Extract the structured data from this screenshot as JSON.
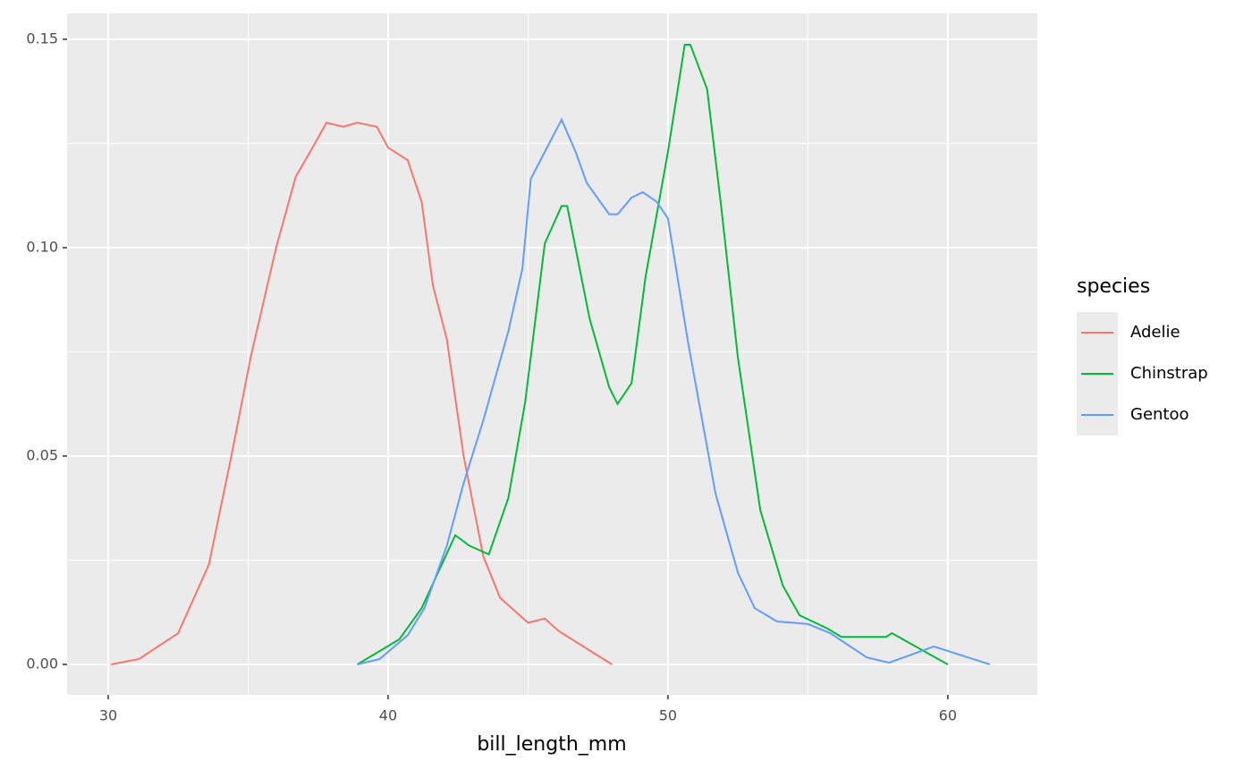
{
  "chart_data": {
    "type": "line",
    "x_label": "bill_length_mm",
    "legend_title": "species",
    "legend_position": "right",
    "grid": true,
    "xlim": [
      28.53,
      63.2
    ],
    "ylim": [
      -0.0073,
      0.1562
    ],
    "xticks": [
      30,
      40,
      50,
      60
    ],
    "yticks": [
      {
        "value": 0,
        "label": "0.00"
      },
      {
        "value": 0.05,
        "label": "0.05"
      },
      {
        "value": 0.1,
        "label": "0.10"
      },
      {
        "value": 0.15,
        "label": "0.15"
      }
    ],
    "xminor": [
      35,
      45,
      55
    ],
    "yminor": [
      0.025,
      0.075,
      0.125
    ],
    "series": [
      {
        "name": "Adelie",
        "color": "#F8766D",
        "x": [
          30.1,
          31.1,
          32.5,
          33.6,
          34.4,
          35.1,
          36.0,
          36.7,
          37.3,
          37.8,
          38.4,
          38.9,
          39.6,
          40.0,
          40.7,
          41.2,
          41.6,
          42.1,
          42.7,
          43.4,
          44.0,
          45.0,
          45.6,
          46.1,
          48.0
        ],
        "values": [
          0,
          0.0013,
          0.0075,
          0.024,
          0.05,
          0.074,
          0.1,
          0.117,
          0.124,
          0.13,
          0.129,
          0.13,
          0.129,
          0.124,
          0.121,
          0.111,
          0.091,
          0.078,
          0.05,
          0.026,
          0.016,
          0.01,
          0.011,
          0.008,
          0
        ]
      },
      {
        "name": "Chinstrap",
        "color": "#00BA38",
        "x": [
          38.9,
          40.4,
          41.2,
          42.4,
          42.9,
          43.6,
          44.3,
          44.9,
          45.6,
          46.2,
          46.4,
          47.2,
          47.9,
          48.2,
          48.7,
          49.2,
          50.0,
          50.6,
          50.8,
          51.4,
          51.9,
          52.5,
          53.3,
          54.1,
          54.7,
          55.7,
          56.2,
          57.8,
          58.0,
          60.0
        ],
        "values": [
          0,
          0.006,
          0.0135,
          0.031,
          0.0285,
          0.0264,
          0.04,
          0.063,
          0.101,
          0.11,
          0.11,
          0.083,
          0.0665,
          0.0625,
          0.0675,
          0.093,
          0.123,
          0.1487,
          0.1487,
          0.138,
          0.11,
          0.0736,
          0.037,
          0.019,
          0.0118,
          0.0086,
          0.0066,
          0.0066,
          0.0075,
          0
        ]
      },
      {
        "name": "Gentoo",
        "color": "#619CFF",
        "x": [
          38.9,
          39.7,
          40.7,
          41.3,
          42.1,
          42.7,
          43.4,
          44.3,
          44.8,
          45.1,
          45.6,
          46.2,
          46.7,
          47.1,
          47.9,
          48.2,
          48.7,
          49.1,
          49.6,
          50.0,
          50.7,
          51.7,
          52.5,
          53.1,
          53.9,
          55.0,
          55.8,
          57.1,
          57.9,
          59.5,
          61.5
        ],
        "values": [
          0,
          0.0013,
          0.007,
          0.0135,
          0.0285,
          0.0435,
          0.0585,
          0.08,
          0.095,
          0.1165,
          0.123,
          0.1307,
          0.123,
          0.1155,
          0.108,
          0.108,
          0.112,
          0.1133,
          0.111,
          0.107,
          0.078,
          0.041,
          0.022,
          0.0135,
          0.0103,
          0.0097,
          0.0075,
          0.0017,
          0.0004,
          0.0043,
          0
        ]
      }
    ]
  }
}
